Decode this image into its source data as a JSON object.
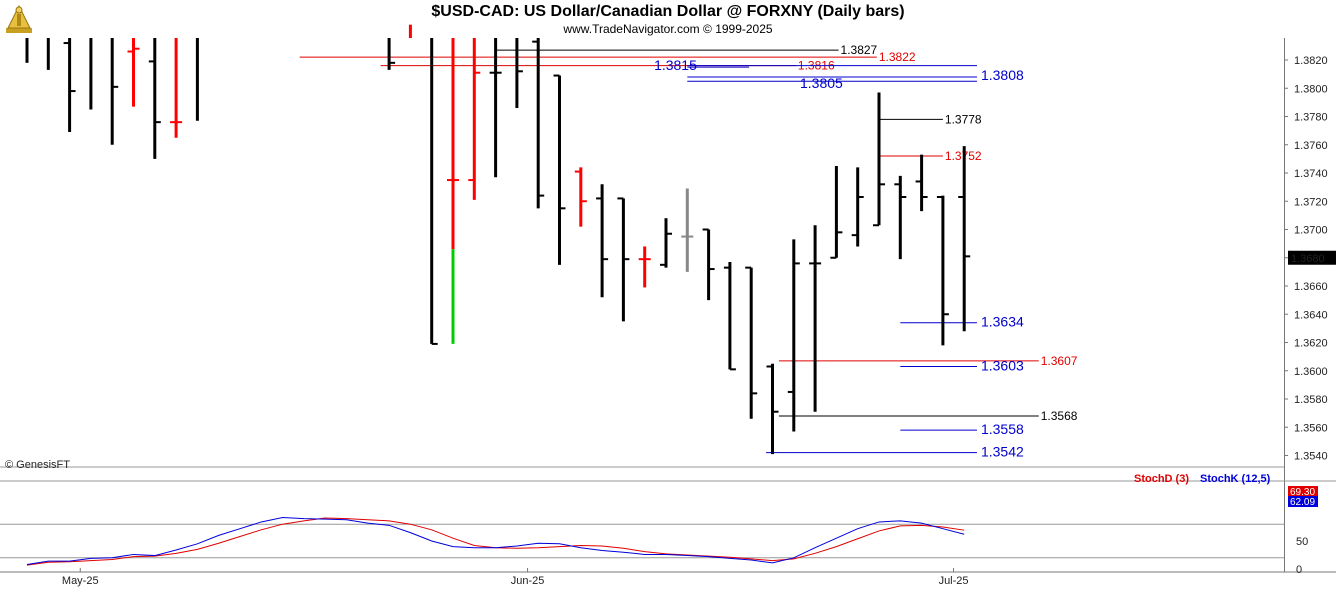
{
  "header": {
    "title": "$USD-CAD:  US Dollar/Canadian Dollar @ FORXNY  (Daily bars)",
    "subtitle": "www.TradeNavigator.com © 1999-2025"
  },
  "watermark": "© GenesisFT",
  "colors": {
    "up": "#000000",
    "down": "#ff0000",
    "green": "#00cc00",
    "neutral": "#888888",
    "stochD": "#e00000",
    "stochK": "#0000dd",
    "level_black": "#000000",
    "level_red": "#e00000",
    "level_blue": "#0000cc"
  },
  "chart_data": [
    {
      "type": "ohlc",
      "title": "$USD-CAD:  US Dollar/Canadian Dollar @ FORXNY  (Daily bars)",
      "ylim": [
        1.3527,
        1.3848
      ],
      "y_ticks": [
        "1.3540",
        "1.3560",
        "1.3580",
        "1.3600",
        "1.3620",
        "1.3640",
        "1.3660",
        "1.3680",
        "1.3700",
        "1.3720",
        "1.3740",
        "1.3760",
        "1.3780",
        "1.3800",
        "1.3820"
      ],
      "last_price": "1.3680",
      "x_labels": [
        {
          "label": "May-25",
          "bar": 2.5
        },
        {
          "label": "Jun-25",
          "bar": 23.5
        },
        {
          "label": "Jul-25",
          "bar": 43.5
        }
      ],
      "bars": [
        {
          "i": 0,
          "o": 1.3837,
          "h": 1.3848,
          "l": 1.3818,
          "c": 1.3836,
          "col": "black"
        },
        {
          "i": 1,
          "o": 1.3837,
          "h": 1.3848,
          "l": 1.3813,
          "c": 1.3838,
          "col": "black"
        },
        {
          "i": 2,
          "o": 1.3832,
          "h": 1.3848,
          "l": 1.3769,
          "c": 1.3798,
          "col": "black"
        },
        {
          "i": 3,
          "o": 1.3837,
          "h": 1.3848,
          "l": 1.3785,
          "c": 1.3838,
          "col": "black"
        },
        {
          "i": 4,
          "o": 1.3848,
          "h": 1.3848,
          "l": 1.376,
          "c": 1.3801,
          "col": "black"
        },
        {
          "i": 5,
          "o": 1.3826,
          "h": 1.3848,
          "l": 1.3787,
          "c": 1.3828,
          "col": "red"
        },
        {
          "i": 6,
          "o": 1.3819,
          "h": 1.3848,
          "l": 1.375,
          "c": 1.3776,
          "col": "black"
        },
        {
          "i": 7,
          "o": 1.3776,
          "h": 1.3848,
          "l": 1.3765,
          "c": 1.3776,
          "col": "red"
        },
        {
          "i": 8,
          "o": 1.3848,
          "h": 1.3848,
          "l": 1.3777,
          "c": 1.3848,
          "col": "black"
        },
        {
          "i": 17,
          "o": 1.3848,
          "h": 1.3848,
          "l": 1.3813,
          "c": 1.3818,
          "col": "black"
        },
        {
          "i": 18,
          "o": 1.3845,
          "h": 1.3848,
          "l": 1.3845,
          "c": 1.3845,
          "col": "red"
        },
        {
          "i": 19,
          "o": 1.3848,
          "h": 1.3848,
          "l": 1.3619,
          "c": 1.3619,
          "col": "black"
        },
        {
          "i": 20,
          "o": 1.3735,
          "h": 1.3848,
          "l": 1.3619,
          "c": 1.3735,
          "col": "red",
          "green_below": 1.3686
        },
        {
          "i": 21,
          "o": 1.3735,
          "h": 1.3848,
          "l": 1.3721,
          "c": 1.3811,
          "col": "red"
        },
        {
          "i": 22,
          "o": 1.3811,
          "h": 1.3848,
          "l": 1.3737,
          "c": 1.3811,
          "col": "black"
        },
        {
          "i": 23,
          "o": 1.3838,
          "h": 1.3848,
          "l": 1.3786,
          "c": 1.3812,
          "col": "black"
        },
        {
          "i": 24,
          "o": 1.3833,
          "h": 1.3848,
          "l": 1.3715,
          "c": 1.3724,
          "col": "black"
        },
        {
          "i": 25,
          "o": 1.3809,
          "h": 1.3809,
          "l": 1.3675,
          "c": 1.3715,
          "col": "black"
        },
        {
          "i": 26,
          "o": 1.3741,
          "h": 1.3744,
          "l": 1.3702,
          "c": 1.372,
          "col": "red"
        },
        {
          "i": 27,
          "o": 1.3722,
          "h": 1.3732,
          "l": 1.3652,
          "c": 1.3679,
          "col": "black"
        },
        {
          "i": 28,
          "o": 1.3722,
          "h": 1.3722,
          "l": 1.3635,
          "c": 1.3679,
          "col": "black"
        },
        {
          "i": 29,
          "o": 1.3679,
          "h": 1.3688,
          "l": 1.3659,
          "c": 1.3679,
          "col": "red"
        },
        {
          "i": 30,
          "o": 1.3675,
          "h": 1.3708,
          "l": 1.3673,
          "c": 1.3697,
          "col": "black"
        },
        {
          "i": 31,
          "o": 1.3695,
          "h": 1.3729,
          "l": 1.367,
          "c": 1.3695,
          "col": "grey"
        },
        {
          "i": 32,
          "o": 1.37,
          "h": 1.37,
          "l": 1.365,
          "c": 1.3672,
          "col": "black"
        },
        {
          "i": 33,
          "o": 1.3673,
          "h": 1.3677,
          "l": 1.3601,
          "c": 1.3601,
          "col": "black"
        },
        {
          "i": 34,
          "o": 1.3673,
          "h": 1.3673,
          "l": 1.3566,
          "c": 1.3584,
          "col": "black"
        },
        {
          "i": 35,
          "o": 1.3603,
          "h": 1.3605,
          "l": 1.3541,
          "c": 1.3571,
          "col": "black"
        },
        {
          "i": 36,
          "o": 1.3585,
          "h": 1.3693,
          "l": 1.3557,
          "c": 1.3676,
          "col": "black"
        },
        {
          "i": 37,
          "o": 1.3676,
          "h": 1.3703,
          "l": 1.3571,
          "c": 1.3676,
          "col": "black"
        },
        {
          "i": 38,
          "o": 1.368,
          "h": 1.3745,
          "l": 1.368,
          "c": 1.3698,
          "col": "black"
        },
        {
          "i": 39,
          "o": 1.3696,
          "h": 1.3744,
          "l": 1.3688,
          "c": 1.3723,
          "col": "black"
        },
        {
          "i": 40,
          "o": 1.3703,
          "h": 1.3797,
          "l": 1.3703,
          "c": 1.3732,
          "col": "black"
        },
        {
          "i": 41,
          "o": 1.3732,
          "h": 1.3738,
          "l": 1.3679,
          "c": 1.3723,
          "col": "black"
        },
        {
          "i": 42,
          "o": 1.3734,
          "h": 1.3753,
          "l": 1.3713,
          "c": 1.3723,
          "col": "black"
        },
        {
          "i": 43,
          "o": 1.3723,
          "h": 1.3724,
          "l": 1.3618,
          "c": 1.364,
          "col": "black"
        },
        {
          "i": 44,
          "o": 1.3723,
          "h": 1.3759,
          "l": 1.3628,
          "c": 1.3681,
          "col": "black"
        }
      ],
      "levels": [
        {
          "value": 1.3827,
          "label": "1.3827",
          "color": "black",
          "from": 22,
          "to": 38.1,
          "size": "small"
        },
        {
          "value": 1.3822,
          "label": "1.3822",
          "color": "red",
          "from": 12.8,
          "to": 39.9,
          "size": "small"
        },
        {
          "value": 1.3816,
          "label": "1.3816",
          "color": "red",
          "from": 16.6,
          "to": 36.1,
          "size": "small"
        },
        {
          "value": 1.3816,
          "label": "",
          "color": "blue",
          "from": 31,
          "to": 44.6,
          "size": "none"
        },
        {
          "value": 1.3815,
          "label": "1.3815",
          "color": "blue",
          "from": 31,
          "to": 33.9,
          "size": "big"
        },
        {
          "value": 1.3808,
          "label": "1.3808",
          "color": "blue",
          "from": 31,
          "to": 44.6,
          "size": "big"
        },
        {
          "value": 1.3805,
          "label": "1.3805",
          "color": "blue",
          "from": 31,
          "to": 44.6,
          "size": "big"
        },
        {
          "value": 1.3778,
          "label": "1.3778",
          "color": "black",
          "from": 40,
          "to": 43,
          "size": "small"
        },
        {
          "value": 1.3752,
          "label": "1.3752",
          "color": "red",
          "from": 40,
          "to": 43,
          "size": "small"
        },
        {
          "value": 1.3634,
          "label": "1.3634",
          "color": "blue",
          "from": 41,
          "to": 44.6,
          "size": "big"
        },
        {
          "value": 1.3607,
          "label": "1.3607",
          "color": "red",
          "from": 35.3,
          "to": 47.5,
          "size": "small"
        },
        {
          "value": 1.3603,
          "label": "1.3603",
          "color": "blue",
          "from": 41,
          "to": 44.6,
          "size": "big"
        },
        {
          "value": 1.3568,
          "label": "1.3568",
          "color": "black",
          "from": 35.3,
          "to": 47.5,
          "size": "small"
        },
        {
          "value": 1.3558,
          "label": "1.3558",
          "color": "blue",
          "from": 41,
          "to": 44.6,
          "size": "big"
        },
        {
          "value": 1.3542,
          "label": "1.3542",
          "color": "blue",
          "from": 34.7,
          "to": 44.6,
          "size": "big"
        }
      ]
    },
    {
      "type": "line",
      "title": "",
      "ylim": [
        0,
        100
      ],
      "y_ticks": [
        "0",
        "50"
      ],
      "legend": [
        "StochD (3)",
        "StochK (12,5)"
      ],
      "last_values": {
        "StochD": "69.30",
        "StochK": "62.09"
      },
      "series": [
        {
          "name": "StochD (3)",
          "values": [
            [
              0,
              7
            ],
            [
              1,
              12
            ],
            [
              2,
              13
            ],
            [
              3,
              15
            ],
            [
              4,
              17
            ],
            [
              5,
              22
            ],
            [
              6,
              23
            ],
            [
              7,
              28
            ],
            [
              8,
              35
            ],
            [
              9,
              46
            ],
            [
              10,
              58
            ],
            [
              11,
              70
            ],
            [
              12,
              80
            ],
            [
              13,
              86
            ],
            [
              14,
              91
            ],
            [
              15,
              90
            ],
            [
              16,
              88
            ],
            [
              17,
              86
            ],
            [
              18,
              80
            ],
            [
              19,
              70
            ],
            [
              20,
              55
            ],
            [
              21,
              42
            ],
            [
              22,
              38
            ],
            [
              23,
              37
            ],
            [
              24,
              38
            ],
            [
              25,
              40
            ],
            [
              26,
              42
            ],
            [
              27,
              41
            ],
            [
              28,
              37
            ],
            [
              29,
              31
            ],
            [
              30,
              27
            ],
            [
              31,
              25
            ],
            [
              32,
              23
            ],
            [
              33,
              21
            ],
            [
              34,
              18
            ],
            [
              35,
              15
            ],
            [
              36,
              18
            ],
            [
              37,
              28
            ],
            [
              38,
              40
            ],
            [
              39,
              54
            ],
            [
              40,
              68
            ],
            [
              41,
              77
            ],
            [
              42,
              78
            ],
            [
              43,
              75
            ],
            [
              44,
              69.3
            ]
          ]
        },
        {
          "name": "StochK (12,5)",
          "values": [
            [
              0,
              8
            ],
            [
              1,
              14
            ],
            [
              2,
              14
            ],
            [
              3,
              19
            ],
            [
              4,
              20
            ],
            [
              5,
              26
            ],
            [
              6,
              24
            ],
            [
              7,
              34
            ],
            [
              8,
              45
            ],
            [
              9,
              60
            ],
            [
              10,
              72
            ],
            [
              11,
              84
            ],
            [
              12,
              92
            ],
            [
              13,
              90
            ],
            [
              14,
              89
            ],
            [
              15,
              88
            ],
            [
              16,
              82
            ],
            [
              17,
              78
            ],
            [
              18,
              65
            ],
            [
              19,
              50
            ],
            [
              20,
              40
            ],
            [
              21,
              38
            ],
            [
              22,
              38
            ],
            [
              23,
              41
            ],
            [
              24,
              46
            ],
            [
              25,
              45
            ],
            [
              26,
              38
            ],
            [
              27,
              33
            ],
            [
              28,
              30
            ],
            [
              29,
              26
            ],
            [
              30,
              26
            ],
            [
              31,
              24
            ],
            [
              32,
              22
            ],
            [
              33,
              19
            ],
            [
              34,
              16
            ],
            [
              35,
              11
            ],
            [
              36,
              20
            ],
            [
              37,
              38
            ],
            [
              38,
              55
            ],
            [
              39,
              72
            ],
            [
              40,
              84
            ],
            [
              41,
              86
            ],
            [
              42,
              82
            ],
            [
              43,
              72
            ],
            [
              44,
              62.09
            ]
          ]
        }
      ]
    }
  ]
}
